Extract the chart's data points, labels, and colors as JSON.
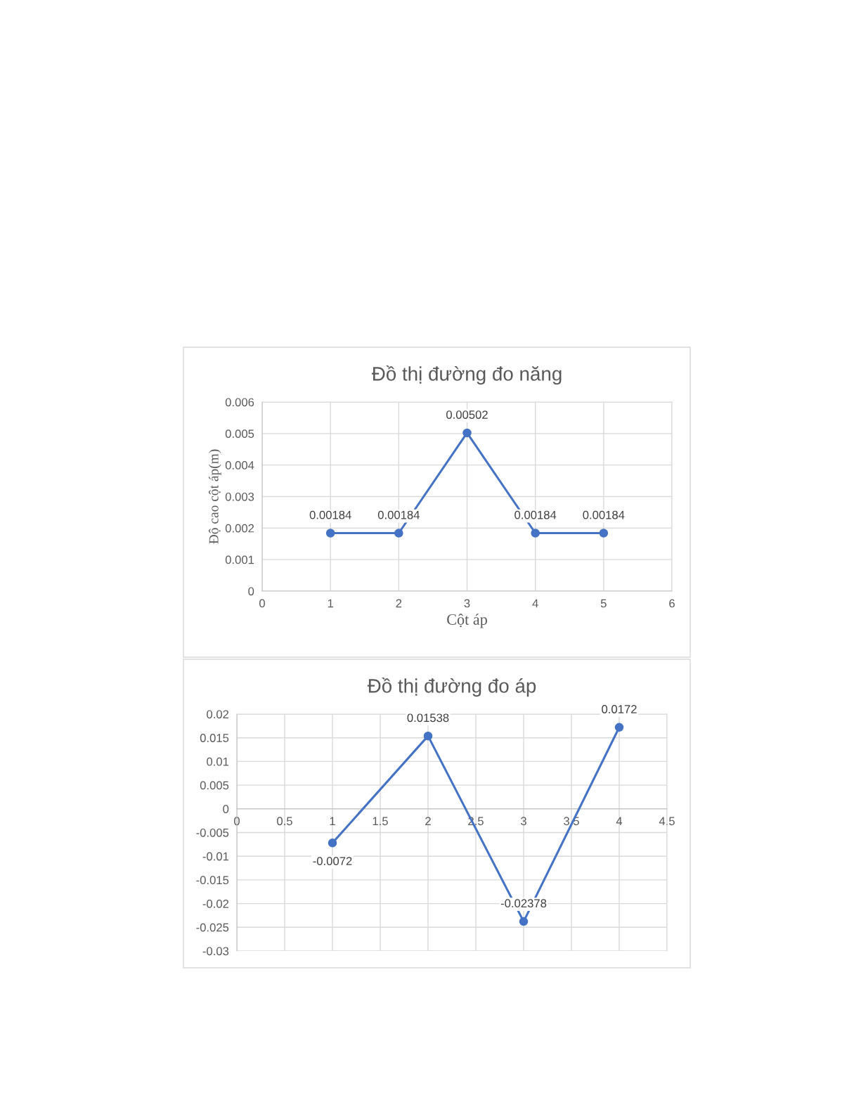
{
  "chart_data": [
    {
      "type": "line",
      "title": "Đồ thị đường đo năng",
      "xlabel": "Cột áp",
      "ylabel": "Độ cao cột áp(m)",
      "x": [
        1,
        2,
        3,
        4,
        5
      ],
      "series": [
        {
          "color": "#4472c4",
          "values": [
            0.00184,
            0.00184,
            0.00502,
            0.00184,
            0.00184
          ]
        }
      ],
      "xlim": [
        0,
        6
      ],
      "xticks": [
        0,
        1,
        2,
        3,
        4,
        5,
        6
      ],
      "ylim": [
        0,
        0.006
      ],
      "yticks": [
        0,
        0.001,
        0.002,
        0.003,
        0.004,
        0.005,
        0.006
      ],
      "grid": true,
      "marker": "circle",
      "line_style": "solid",
      "data_labels": true
    },
    {
      "type": "line",
      "title": "Đồ thị đường đo áp",
      "x": [
        1,
        2,
        3,
        4
      ],
      "series": [
        {
          "color": "#4472c4",
          "values": [
            -0.0072,
            0.01538,
            -0.02378,
            0.0172
          ]
        }
      ],
      "xlim": [
        0,
        4.5
      ],
      "xticks": [
        0,
        0.5,
        1,
        1.5,
        2,
        2.5,
        3,
        3.5,
        4,
        4.5
      ],
      "ylim": [
        -0.03,
        0.02
      ],
      "yticks": [
        -0.03,
        -0.025,
        -0.02,
        -0.015,
        -0.01,
        -0.005,
        0,
        0.005,
        0.01,
        0.015,
        0.02
      ],
      "grid": true,
      "marker": "circle",
      "line_style": "solid",
      "data_labels": true
    }
  ]
}
